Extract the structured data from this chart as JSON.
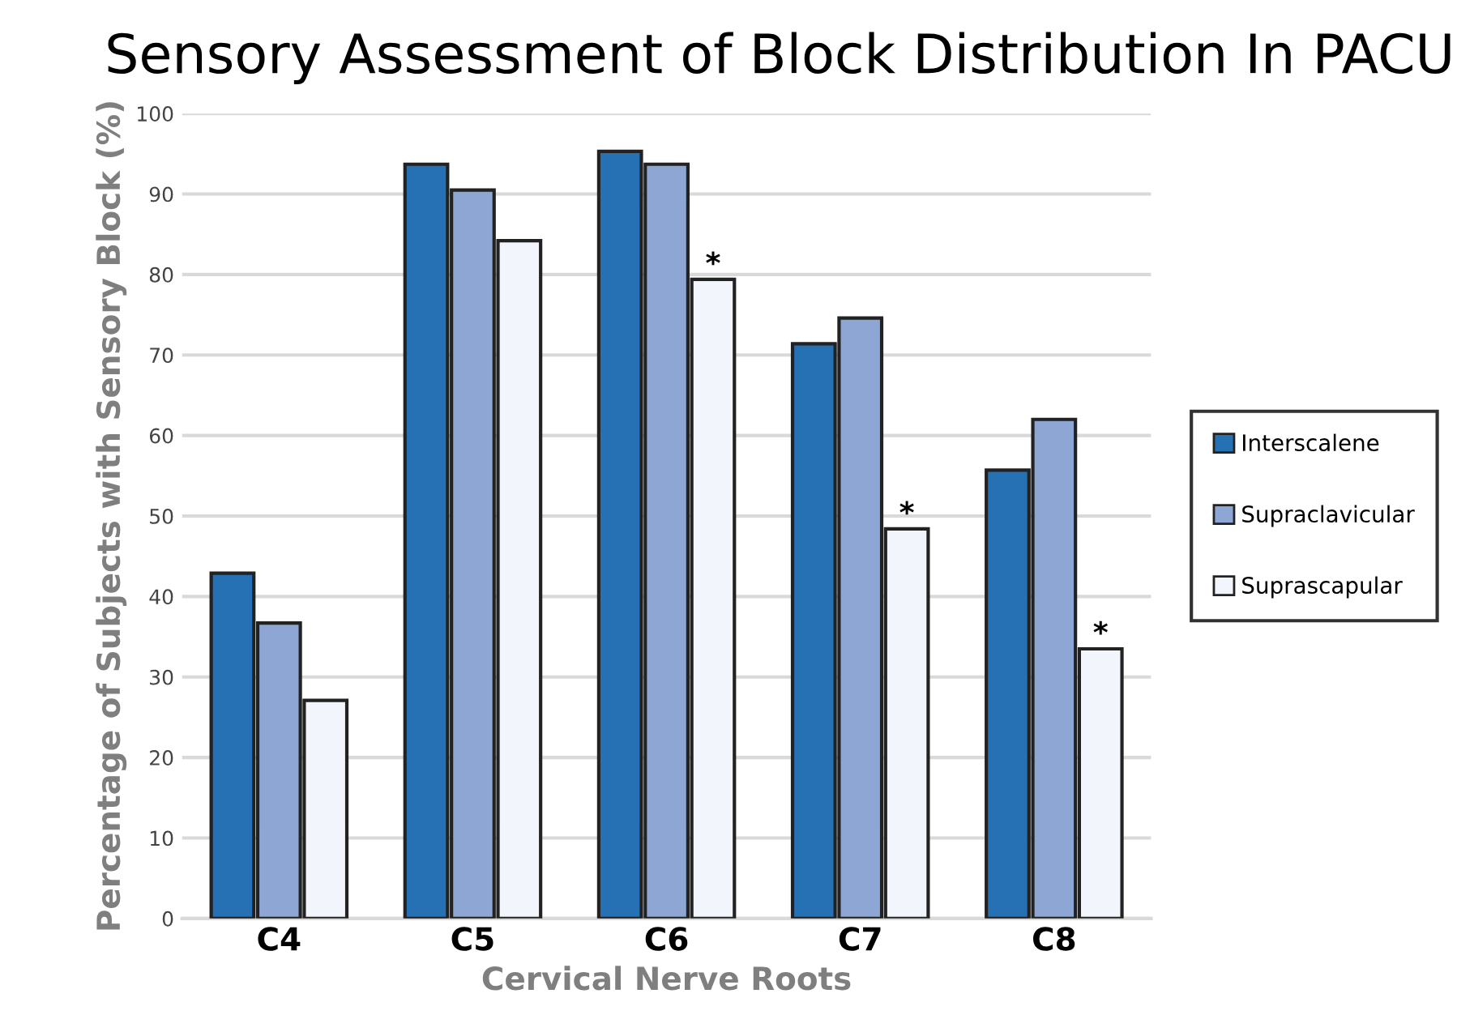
{
  "chart_data": {
    "type": "bar",
    "title": "Sensory Assessment of Block Distribution In PACU",
    "xlabel": "Cervical Nerve Roots",
    "ylabel": "Percentage of Subjects with Sensory Block (%)",
    "categories": [
      "C4",
      "C5",
      "C6",
      "C7",
      "C8"
    ],
    "series": [
      {
        "name": "Interscalene",
        "color": "#2670b4",
        "values": [
          42.9,
          93.7,
          95.3,
          71.4,
          55.7
        ]
      },
      {
        "name": "Supraclavicular",
        "color": "#8ea6d3",
        "values": [
          36.7,
          90.5,
          93.7,
          74.6,
          62.0
        ]
      },
      {
        "name": "Suprascapular",
        "color": "#f2f5fb",
        "values": [
          27.1,
          84.2,
          79.4,
          48.4,
          33.5
        ]
      }
    ],
    "ylim": [
      0,
      100
    ],
    "yticks": [
      0,
      10,
      20,
      30,
      40,
      50,
      60,
      70,
      80,
      90,
      100
    ],
    "grid": "y",
    "legend": "right",
    "annotations": [
      "*",
      "*",
      "*"
    ]
  }
}
